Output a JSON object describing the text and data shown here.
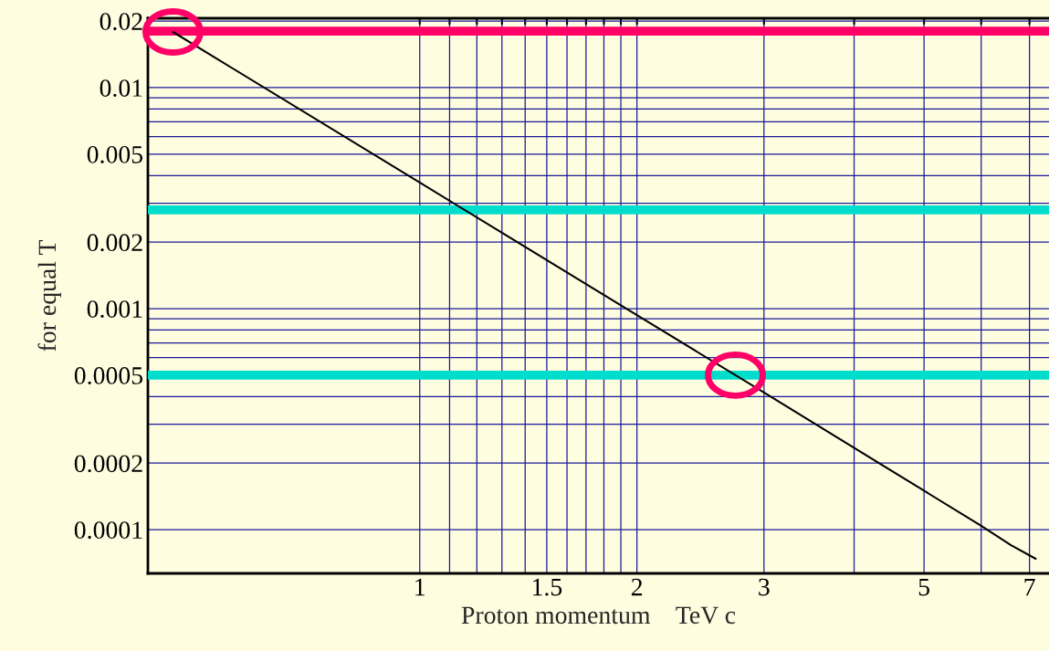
{
  "chart_data": {
    "type": "line",
    "xlabel": "Proton momentum    TeV c",
    "ylabel": "for equal T",
    "log": "xy",
    "xlim": [
      0.42,
      7.45
    ],
    "ylim": [
      6.34e-05,
      0.0206
    ],
    "xticks": [
      1,
      {
        "value": 1.1,
        "label": null
      },
      {
        "value": 1.2,
        "label": null
      },
      {
        "value": 1.3,
        "label": null
      },
      {
        "value": 1.4,
        "label": null
      },
      1.5,
      {
        "value": 1.6,
        "label": null
      },
      {
        "value": 1.7,
        "label": null
      },
      {
        "value": 1.8,
        "label": null
      },
      {
        "value": 1.9,
        "label": null
      },
      2,
      3,
      {
        "value": 4,
        "label": null
      },
      5,
      {
        "value": 6,
        "label": null
      },
      7
    ],
    "yticks": [
      0.0001,
      0.0002,
      {
        "value": 0.0003,
        "label": null
      },
      {
        "value": 0.0004,
        "label": null
      },
      0.0005,
      {
        "value": 0.0006,
        "label": null
      },
      {
        "value": 0.0007,
        "label": null
      },
      {
        "value": 0.0008,
        "label": null
      },
      {
        "value": 0.0009,
        "label": null
      },
      0.001,
      0.002,
      {
        "value": 0.003,
        "label": null
      },
      {
        "value": 0.004,
        "label": null
      },
      0.005,
      {
        "value": 0.006,
        "label": null
      },
      {
        "value": 0.007,
        "label": null
      },
      {
        "value": 0.008,
        "label": null
      },
      {
        "value": 0.009,
        "label": null
      },
      0.01,
      0.02
    ],
    "grid": true,
    "series": [
      {
        "color": "#000000",
        "x": [
          0.455,
          1,
          2,
          3,
          5,
          6,
          6.6,
          7.14
        ],
        "values": [
          0.01786,
          0.00372,
          0.000935,
          0.000417,
          0.00015,
          0.000104,
          8.5e-05,
          7.38e-05
        ]
      }
    ],
    "ref_lines": [
      {
        "axis": "y",
        "value": 0.018,
        "color": "#ff0066"
      },
      {
        "axis": "y",
        "value": 0.0028,
        "color": "#00ddcc"
      },
      {
        "axis": "y",
        "value": 0.0005,
        "color": "#00ddcc"
      }
    ]
  }
}
